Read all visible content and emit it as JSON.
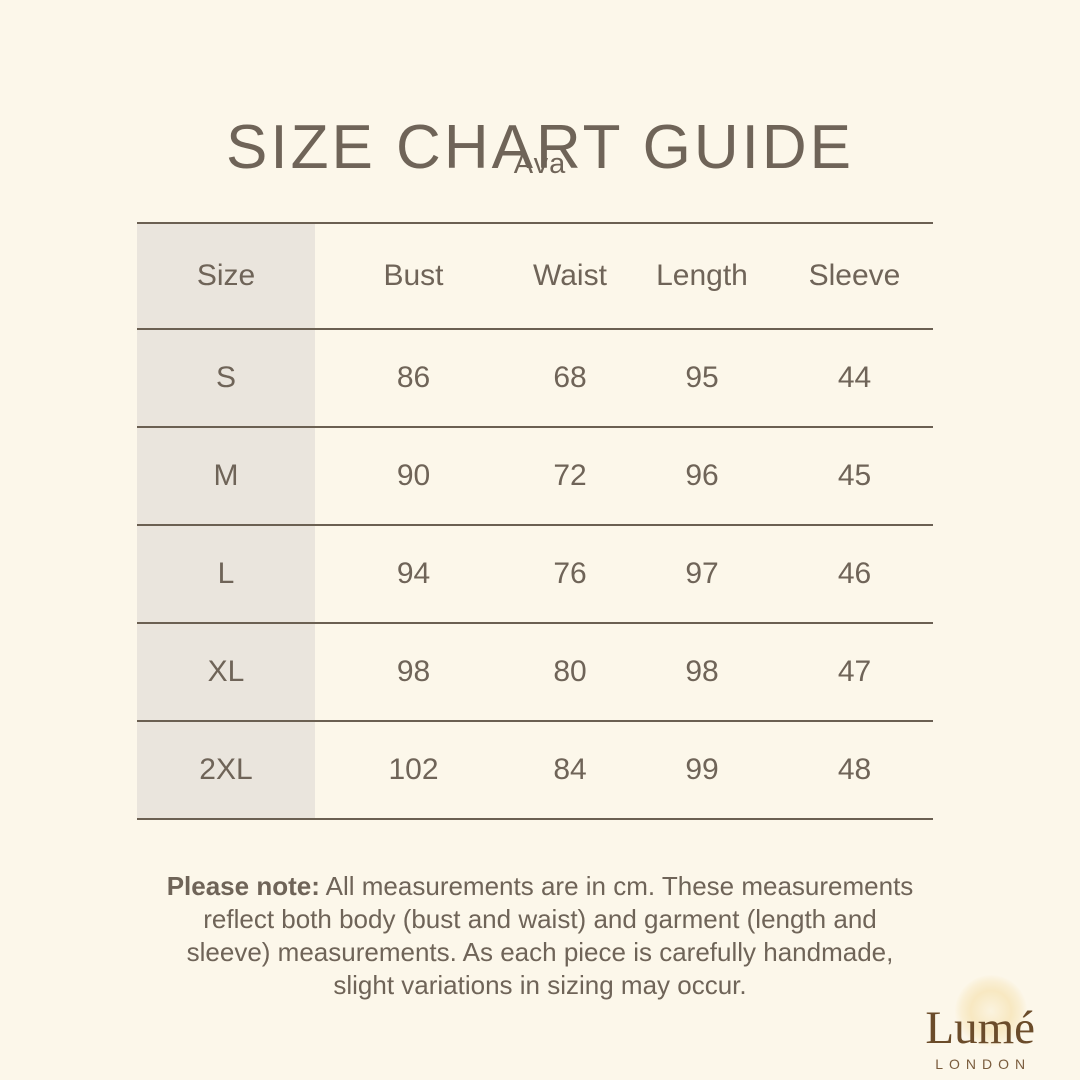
{
  "page": {
    "title": "SIZE CHART GUIDE",
    "subtitle": "Ava"
  },
  "size_chart": {
    "columns": [
      "Size",
      "Bust",
      "Waist",
      "Length",
      "Sleeve"
    ],
    "rows": [
      {
        "size": "S",
        "bust": "86",
        "waist": "68",
        "length": "95",
        "sleeve": "44"
      },
      {
        "size": "M",
        "bust": "90",
        "waist": "72",
        "length": "96",
        "sleeve": "45"
      },
      {
        "size": "L",
        "bust": "94",
        "waist": "76",
        "length": "97",
        "sleeve": "46"
      },
      {
        "size": "XL",
        "bust": "98",
        "waist": "80",
        "length": "98",
        "sleeve": "47"
      },
      {
        "size": "2XL",
        "bust": "102",
        "waist": "84",
        "length": "99",
        "sleeve": "48"
      }
    ]
  },
  "note": {
    "label": "Please note:",
    "lines": [
      "All measurements are in cm. These measurements",
      "reflect both body (bust and waist) and garment (length and",
      "sleeve) measurements. As each piece is carefully handmade,",
      "slight variations in sizing may occur."
    ]
  },
  "brand": {
    "name": "Lumé",
    "city": "LONDON"
  },
  "colors": {
    "background": "#fcf7ea",
    "size_column_bg": "#eae5dd",
    "line": "#6b6052",
    "text": "#6f6458",
    "brand_brown": "#6b4c2a",
    "halo": "#f4dca0"
  }
}
